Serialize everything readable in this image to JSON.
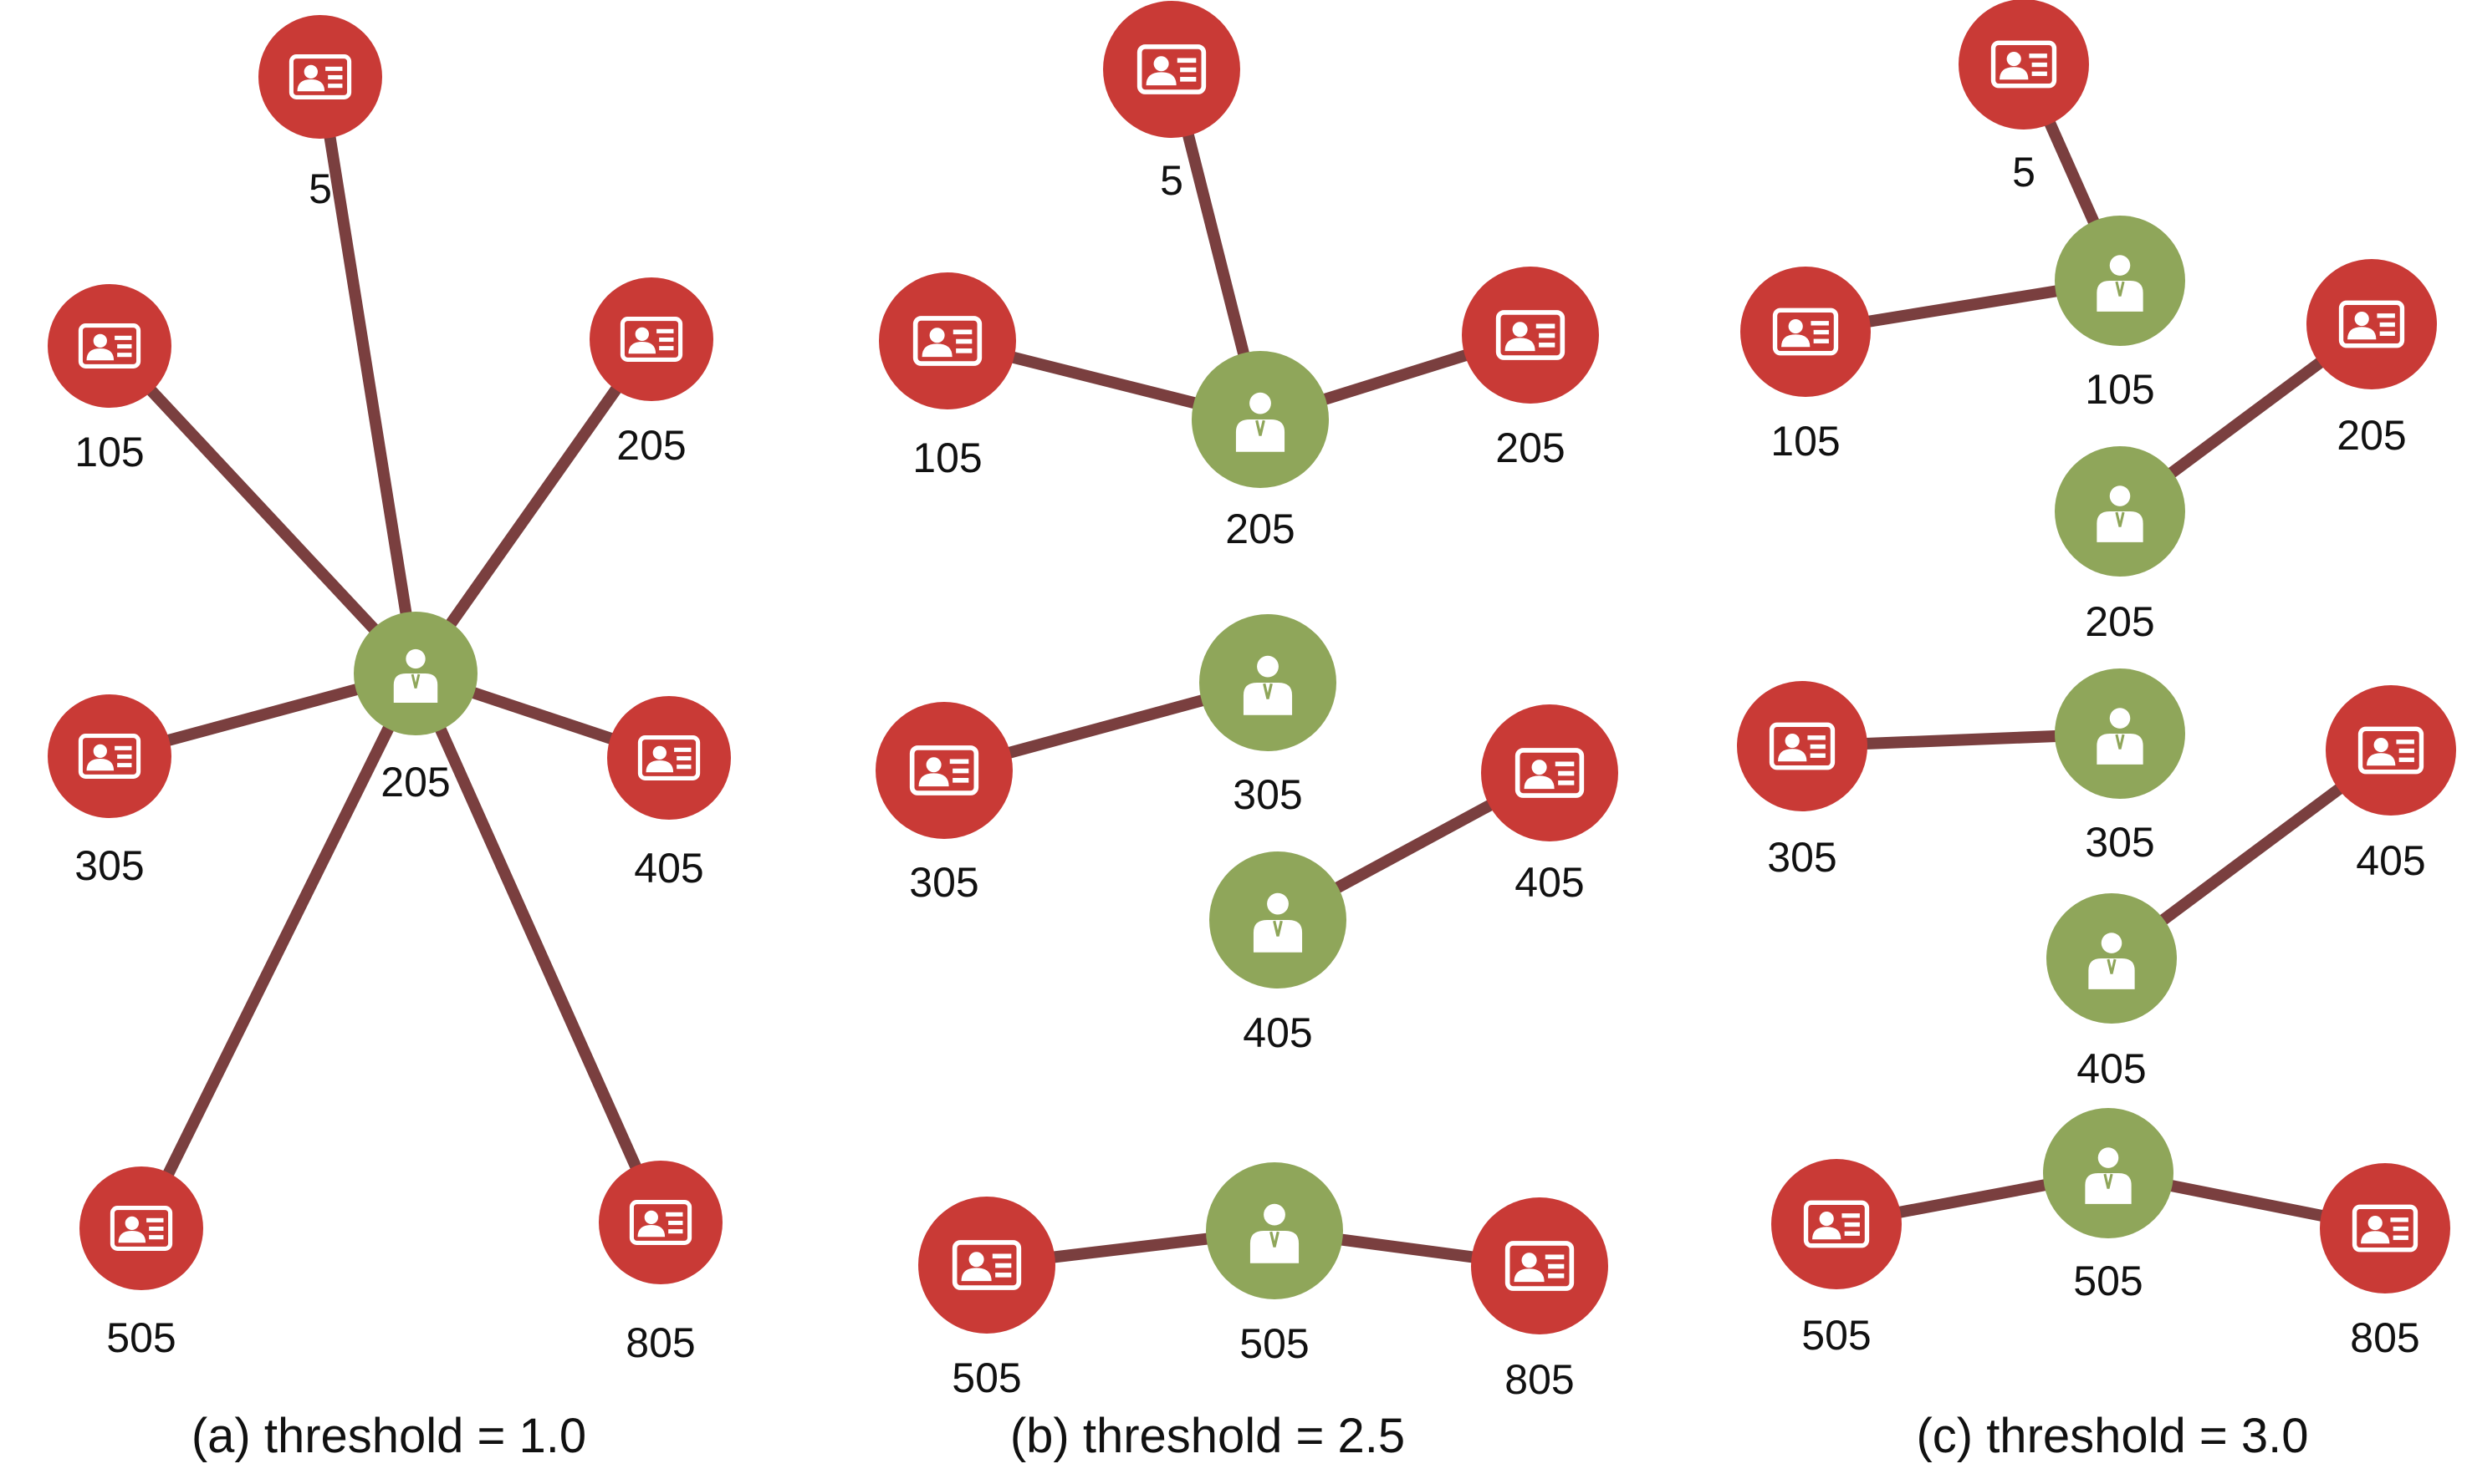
{
  "colors": {
    "edge": "#7a3f3f",
    "card_node": "#c93a36",
    "person_node": "#8fa65a",
    "icon": "#ffffff",
    "text": "#111111"
  },
  "icons": {
    "card_node": "id-card-icon",
    "person_node": "person-icon"
  },
  "panels": [
    {
      "caption": "(a) threshold = 1.0",
      "nodes": [
        {
          "id": "a-c5",
          "kind": "card",
          "label": "5"
        },
        {
          "id": "a-c105",
          "kind": "card",
          "label": "105"
        },
        {
          "id": "a-c205",
          "kind": "card",
          "label": "205"
        },
        {
          "id": "a-c305",
          "kind": "card",
          "label": "305"
        },
        {
          "id": "a-c405",
          "kind": "card",
          "label": "405"
        },
        {
          "id": "a-c505",
          "kind": "card",
          "label": "505"
        },
        {
          "id": "a-c805",
          "kind": "card",
          "label": "805"
        },
        {
          "id": "a-p205",
          "kind": "person",
          "label": "205"
        }
      ],
      "edges": [
        [
          "a-p205",
          "a-c5"
        ],
        [
          "a-p205",
          "a-c105"
        ],
        [
          "a-p205",
          "a-c205"
        ],
        [
          "a-p205",
          "a-c305"
        ],
        [
          "a-p205",
          "a-c405"
        ],
        [
          "a-p205",
          "a-c505"
        ],
        [
          "a-p205",
          "a-c805"
        ]
      ]
    },
    {
      "caption": "(b) threshold = 2.5",
      "nodes": [
        {
          "id": "b-c5",
          "kind": "card",
          "label": "5"
        },
        {
          "id": "b-c105",
          "kind": "card",
          "label": "105"
        },
        {
          "id": "b-c205",
          "kind": "card",
          "label": "205"
        },
        {
          "id": "b-p205",
          "kind": "person",
          "label": "205"
        },
        {
          "id": "b-c305",
          "kind": "card",
          "label": "305"
        },
        {
          "id": "b-p305",
          "kind": "person",
          "label": "305"
        },
        {
          "id": "b-c405",
          "kind": "card",
          "label": "405"
        },
        {
          "id": "b-p405",
          "kind": "person",
          "label": "405"
        },
        {
          "id": "b-c505",
          "kind": "card",
          "label": "505"
        },
        {
          "id": "b-p505",
          "kind": "person",
          "label": "505"
        },
        {
          "id": "b-c805",
          "kind": "card",
          "label": "805"
        }
      ],
      "edges": [
        [
          "b-p205",
          "b-c5"
        ],
        [
          "b-p205",
          "b-c105"
        ],
        [
          "b-p205",
          "b-c205"
        ],
        [
          "b-p305",
          "b-c305"
        ],
        [
          "b-p405",
          "b-c405"
        ],
        [
          "b-p505",
          "b-c505"
        ],
        [
          "b-p505",
          "b-c805"
        ]
      ]
    },
    {
      "caption": "(c) threshold = 3.0",
      "nodes": [
        {
          "id": "c-c5",
          "kind": "card",
          "label": "5"
        },
        {
          "id": "c-c105",
          "kind": "card",
          "label": "105"
        },
        {
          "id": "c-p105",
          "kind": "person",
          "label": "105"
        },
        {
          "id": "c-c205",
          "kind": "card",
          "label": "205"
        },
        {
          "id": "c-p205",
          "kind": "person",
          "label": "205"
        },
        {
          "id": "c-c305",
          "kind": "card",
          "label": "305"
        },
        {
          "id": "c-p305",
          "kind": "person",
          "label": "305"
        },
        {
          "id": "c-c405",
          "kind": "card",
          "label": "405"
        },
        {
          "id": "c-p405",
          "kind": "person",
          "label": "405"
        },
        {
          "id": "c-c505",
          "kind": "card",
          "label": "505"
        },
        {
          "id": "c-p505",
          "kind": "person",
          "label": "505"
        },
        {
          "id": "c-c805",
          "kind": "card",
          "label": "805"
        }
      ],
      "edges": [
        [
          "c-p105",
          "c-c5"
        ],
        [
          "c-p105",
          "c-c105"
        ],
        [
          "c-p205",
          "c-c205"
        ],
        [
          "c-p305",
          "c-c305"
        ],
        [
          "c-p405",
          "c-c405"
        ],
        [
          "c-p505",
          "c-c505"
        ],
        [
          "c-p505",
          "c-c805"
        ]
      ]
    }
  ]
}
